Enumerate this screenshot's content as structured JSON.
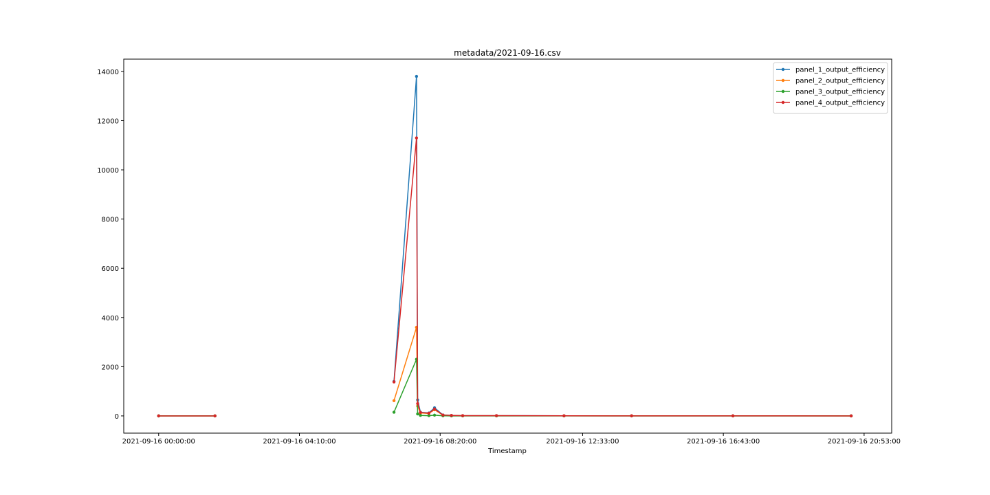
{
  "chart_data": {
    "type": "line",
    "title": "metadata/2021-09-16.csv",
    "xlabel": "Timestamp",
    "ylabel": "",
    "x_tick_labels": [
      "2021-09-16 00:00:00",
      "2021-09-16 04:10:00",
      "2021-09-16 08:20:00",
      "2021-09-16 12:33:00",
      "2021-09-16 16:43:00",
      "2021-09-16 20:53:00"
    ],
    "x_tick_values": [
      "2021-09-16 00:00",
      "2021-09-16 04:10",
      "2021-09-16 08:20",
      "2021-09-16 12:33",
      "2021-09-16 16:43",
      "2021-09-16 20:53"
    ],
    "y_ticks": [
      0,
      2000,
      4000,
      6000,
      8000,
      10000,
      12000,
      14000
    ],
    "xlim": [
      "2021-09-15 22:58",
      "2021-09-16 21:42"
    ],
    "ylim": [
      -700,
      14500
    ],
    "grid": false,
    "legend_position": "top-right",
    "series": [
      {
        "name": "panel_1_output_efficiency",
        "color": "#1f77b4",
        "points": [
          [
            "2021-09-16 00:00",
            0
          ],
          [
            "2021-09-16 01:40",
            0
          ],
          [
            "2021-09-16 06:58",
            1400
          ],
          [
            "2021-09-16 07:38",
            13800
          ],
          [
            "2021-09-16 07:40",
            650
          ],
          [
            "2021-09-16 07:45",
            150
          ],
          [
            "2021-09-16 08:00",
            120
          ],
          [
            "2021-09-16 08:10",
            330
          ],
          [
            "2021-09-16 08:25",
            40
          ],
          [
            "2021-09-16 08:40",
            20
          ],
          [
            "2021-09-16 09:00",
            10
          ],
          [
            "2021-09-16 10:00",
            10
          ],
          [
            "2021-09-16 12:00",
            5
          ],
          [
            "2021-09-16 14:00",
            3
          ],
          [
            "2021-09-16 17:00",
            2
          ],
          [
            "2021-09-16 20:30",
            0
          ]
        ]
      },
      {
        "name": "panel_2_output_efficiency",
        "color": "#ff7f0e",
        "points": [
          [
            "2021-09-16 00:00",
            0
          ],
          [
            "2021-09-16 01:40",
            0
          ],
          [
            "2021-09-16 06:58",
            620
          ],
          [
            "2021-09-16 07:38",
            3600
          ],
          [
            "2021-09-16 07:40",
            400
          ],
          [
            "2021-09-16 07:45",
            120
          ],
          [
            "2021-09-16 08:00",
            100
          ],
          [
            "2021-09-16 08:10",
            250
          ],
          [
            "2021-09-16 08:25",
            30
          ],
          [
            "2021-09-16 08:40",
            15
          ],
          [
            "2021-09-16 09:00",
            8
          ],
          [
            "2021-09-16 10:00",
            8
          ],
          [
            "2021-09-16 12:00",
            4
          ],
          [
            "2021-09-16 14:00",
            2
          ],
          [
            "2021-09-16 17:00",
            1
          ],
          [
            "2021-09-16 20:30",
            0
          ]
        ]
      },
      {
        "name": "panel_3_output_efficiency",
        "color": "#2ca02c",
        "points": [
          [
            "2021-09-16 00:00",
            0
          ],
          [
            "2021-09-16 01:40",
            0
          ],
          [
            "2021-09-16 06:58",
            150
          ],
          [
            "2021-09-16 07:38",
            2300
          ],
          [
            "2021-09-16 07:40",
            80
          ],
          [
            "2021-09-16 07:45",
            20
          ],
          [
            "2021-09-16 08:00",
            10
          ],
          [
            "2021-09-16 08:10",
            30
          ],
          [
            "2021-09-16 08:25",
            5
          ],
          [
            "2021-09-16 08:40",
            0
          ],
          [
            "2021-09-16 09:00",
            0
          ],
          [
            "2021-09-16 10:00",
            0
          ],
          [
            "2021-09-16 12:00",
            0
          ],
          [
            "2021-09-16 14:00",
            0
          ],
          [
            "2021-09-16 17:00",
            0
          ],
          [
            "2021-09-16 20:30",
            0
          ]
        ]
      },
      {
        "name": "panel_4_output_efficiency",
        "color": "#d62728",
        "points": [
          [
            "2021-09-16 00:00",
            0
          ],
          [
            "2021-09-16 01:40",
            0
          ],
          [
            "2021-09-16 06:58",
            1380
          ],
          [
            "2021-09-16 07:38",
            11300
          ],
          [
            "2021-09-16 07:40",
            500
          ],
          [
            "2021-09-16 07:45",
            140
          ],
          [
            "2021-09-16 08:00",
            110
          ],
          [
            "2021-09-16 08:10",
            280
          ],
          [
            "2021-09-16 08:25",
            35
          ],
          [
            "2021-09-16 08:40",
            18
          ],
          [
            "2021-09-16 09:00",
            10
          ],
          [
            "2021-09-16 10:00",
            10
          ],
          [
            "2021-09-16 12:00",
            5
          ],
          [
            "2021-09-16 14:00",
            3
          ],
          [
            "2021-09-16 17:00",
            2
          ],
          [
            "2021-09-16 20:30",
            0
          ]
        ]
      }
    ]
  }
}
